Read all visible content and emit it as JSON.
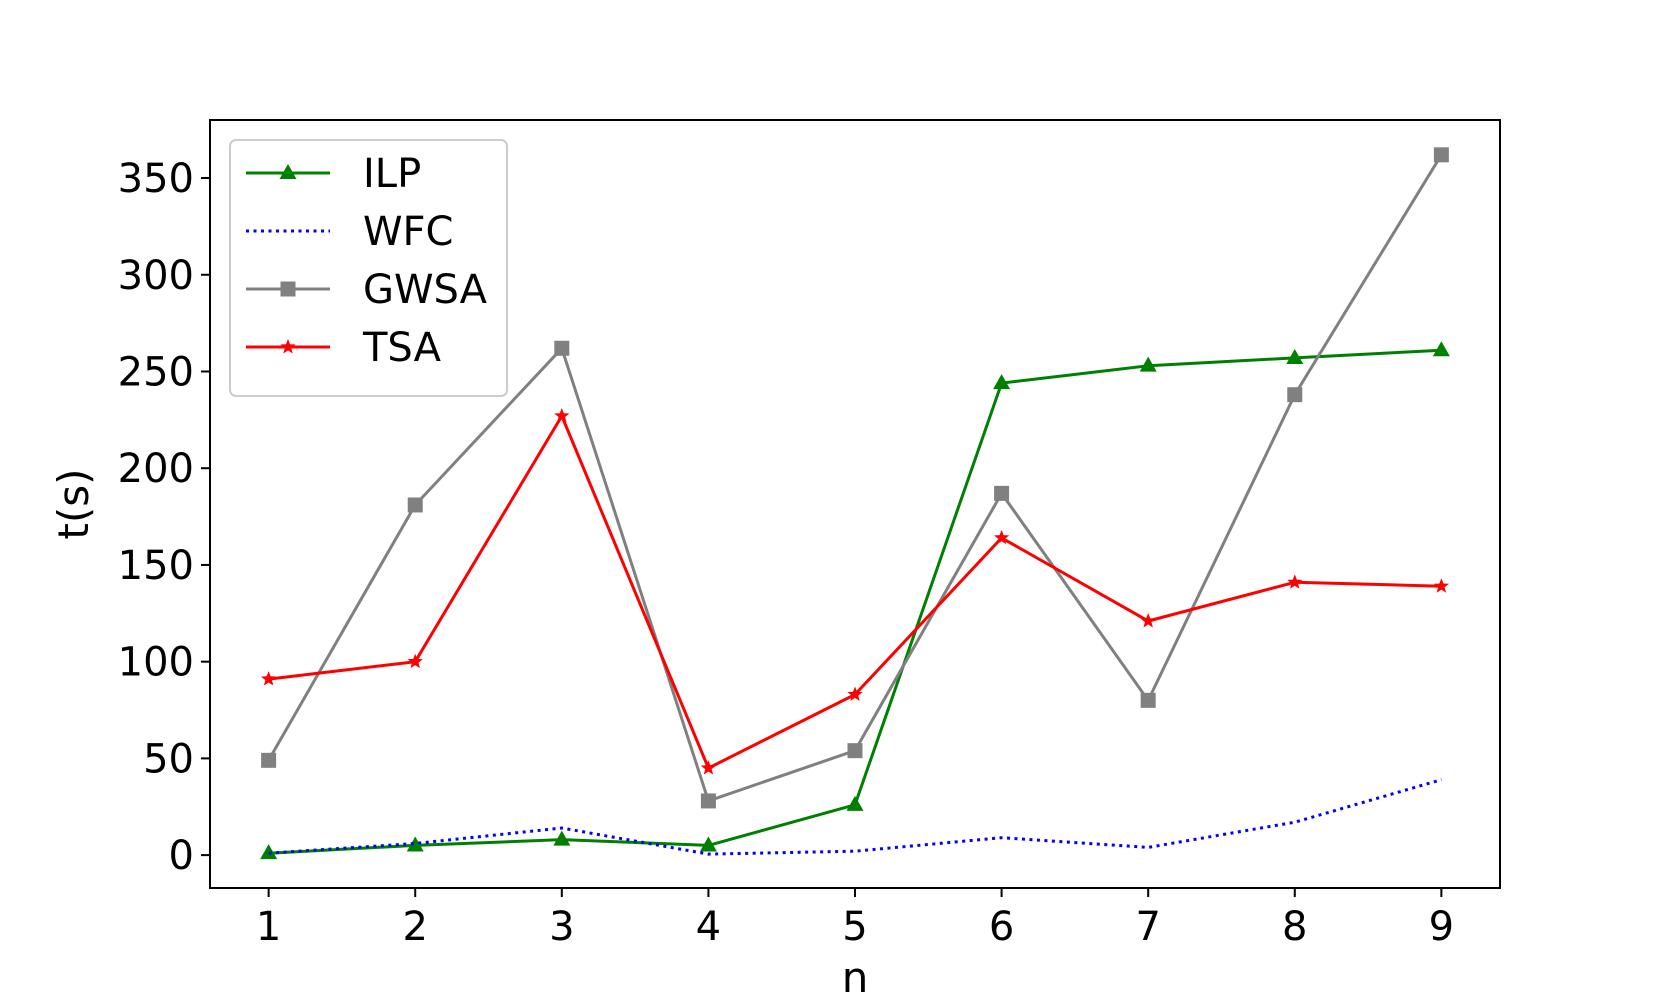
{
  "chart_data": {
    "type": "line",
    "title": "",
    "xlabel": "n",
    "ylabel": "t(s)",
    "x": [
      1,
      2,
      3,
      4,
      5,
      6,
      7,
      8,
      9
    ],
    "xlim": [
      0.6,
      9.4
    ],
    "ylim": [
      -17,
      380
    ],
    "xticks": [
      1,
      2,
      3,
      4,
      5,
      6,
      7,
      8,
      9
    ],
    "yticks": [
      0,
      50,
      100,
      150,
      200,
      250,
      300,
      350
    ],
    "grid": false,
    "legend_position": "top-left",
    "series": [
      {
        "name": "ILP",
        "color": "#008000",
        "line_style": "solid",
        "marker": "triangle",
        "values": [
          1,
          5,
          8,
          5,
          26,
          244,
          253,
          257,
          261
        ]
      },
      {
        "name": "WFC",
        "color": "#0000ff",
        "line_style": "dotted",
        "marker": "none",
        "values": [
          1,
          6,
          14,
          0.5,
          2,
          9,
          4,
          17,
          39
        ]
      },
      {
        "name": "GWSA",
        "color": "#808080",
        "line_style": "solid",
        "marker": "square",
        "values": [
          49,
          181,
          262,
          28,
          54,
          187,
          80,
          238,
          362
        ]
      },
      {
        "name": "TSA",
        "color": "#ff0000",
        "line_style": "solid",
        "marker": "star",
        "values": [
          91,
          100,
          227,
          45,
          83,
          164,
          121,
          141,
          139
        ]
      }
    ]
  }
}
